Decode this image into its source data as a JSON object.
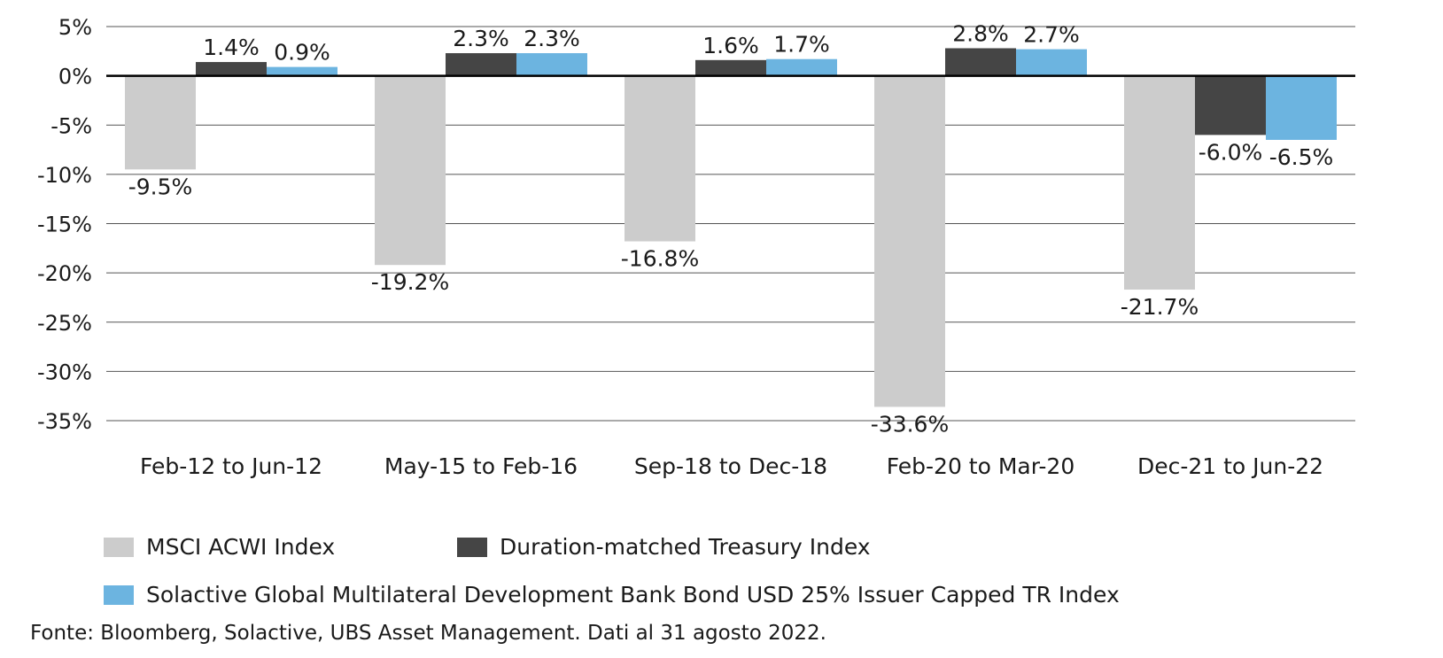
{
  "chart_data": {
    "type": "bar",
    "categories": [
      "Feb-12 to Jun-12",
      "May-15 to Feb-16",
      "Sep-18 to Dec-18",
      "Feb-20 to Mar-20",
      "Dec-21 to Jun-22"
    ],
    "series": [
      {
        "name": "MSCI ACWI Index",
        "color": "#cccccc",
        "values": [
          -9.5,
          -19.2,
          -16.8,
          -33.6,
          -21.7
        ]
      },
      {
        "name": "Duration-matched Treasury Index",
        "color": "#454545",
        "values": [
          1.4,
          2.3,
          1.6,
          2.8,
          -6.0
        ]
      },
      {
        "name": "Solactive Global Multilateral Development Bank Bond USD 25% Issuer Capped TR Index",
        "color": "#6cb4e0",
        "values": [
          0.9,
          2.3,
          1.7,
          2.7,
          -6.5
        ]
      }
    ],
    "data_labels": [
      [
        "-9.5%",
        "-19.2%",
        "-16.8%",
        "-33.6%",
        "-21.7%"
      ],
      [
        "1.4%",
        "2.3%",
        "1.6%",
        "2.8%",
        "-6.0%"
      ],
      [
        "0.9%",
        "2.3%",
        "1.7%",
        "2.7%",
        "-6.5%"
      ]
    ],
    "yticks": [
      5,
      0,
      -5,
      -10,
      -15,
      -20,
      -25,
      -30,
      -35
    ],
    "ytick_labels": [
      "5%",
      "0%",
      "-5%",
      "-10%",
      "-15%",
      "-20%",
      "-25%",
      "-30%",
      "-35%"
    ],
    "ylim": [
      -35,
      5
    ],
    "grid": true,
    "legend_position": "bottom",
    "title": "",
    "xlabel": "",
    "ylabel": ""
  },
  "source_note": "Fonte: Bloomberg, Solactive, UBS Asset Management. Dati al 31 agosto 2022."
}
